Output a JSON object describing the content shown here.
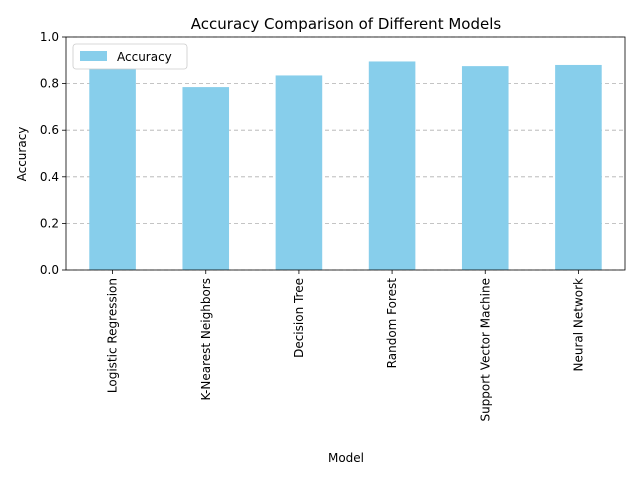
{
  "chart_data": {
    "type": "bar",
    "title": "Accuracy Comparison of Different Models",
    "xlabel": "Model",
    "ylabel": "Accuracy",
    "categories": [
      "Logistic Regression",
      "K-Nearest Neighbors",
      "Decision Tree",
      "Random Forest",
      "Support Vector Machine",
      "Neural Network"
    ],
    "series": [
      {
        "name": "Accuracy",
        "values": [
          0.865,
          0.785,
          0.835,
          0.895,
          0.875,
          0.88
        ],
        "color": "#87ceeb"
      }
    ],
    "ylim": [
      0,
      1.0
    ],
    "yticks": [
      "0.0",
      "0.2",
      "0.4",
      "0.6",
      "0.8",
      "1.0"
    ],
    "grid": "y-dashed",
    "legend_position": "top-left"
  }
}
